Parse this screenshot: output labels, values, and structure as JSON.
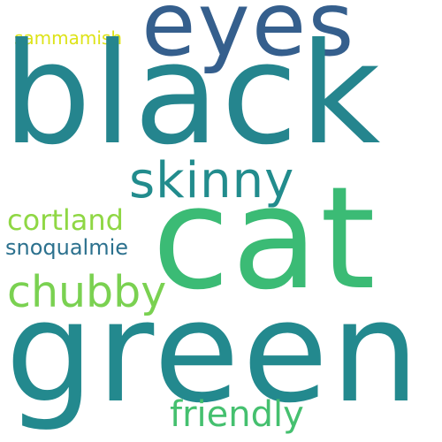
{
  "words": {
    "black": {
      "text": "black",
      "color": "#25858e"
    },
    "green": {
      "text": "green",
      "color": "#23898e"
    },
    "cat": {
      "text": "cat",
      "color": "#3bbb75"
    },
    "eyes": {
      "text": "eyes",
      "color": "#355f8d"
    },
    "skinny": {
      "text": "skinny",
      "color": "#228c8d"
    },
    "chubby": {
      "text": "chubby",
      "color": "#7ad151"
    },
    "friendly": {
      "text": "friendly",
      "color": "#45c06f"
    },
    "cortland": {
      "text": "cortland",
      "color": "#8fd744"
    },
    "snoqualmie": {
      "text": "snoqualmie",
      "color": "#2c718e"
    },
    "sammamish": {
      "text": "sammamish",
      "color": "#dde318"
    }
  }
}
